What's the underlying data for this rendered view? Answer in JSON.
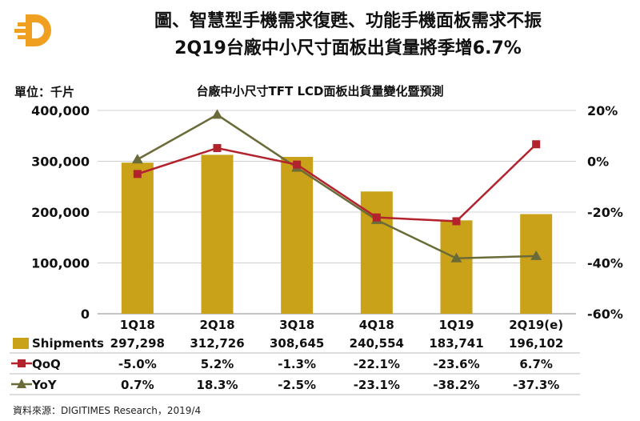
{
  "header": {
    "title_line1": "圖、智慧型手機需求復甦、功能手機面板需求不振",
    "title_line2": "2Q19台廠中小尺寸面板出貨量將季增6.7%"
  },
  "source": "資料來源：DIGITIMES Research，2019/4",
  "colors": {
    "bar": "#c9a21a",
    "qoq": "#b3232e",
    "yoy": "#6b6b3a",
    "logo": "#f0a020"
  },
  "chart_data": {
    "type": "bar",
    "title": "台廠中小尺寸TFT LCD面板出貨量變化暨預測",
    "unit_label": "單位：千片",
    "categories": [
      "1Q18",
      "2Q18",
      "3Q18",
      "4Q18",
      "1Q19",
      "2Q19(e)"
    ],
    "ylim": [
      0,
      400000
    ],
    "yticks": [
      "0",
      "100,000",
      "200,000",
      "300,000",
      "400,000"
    ],
    "y2lim": [
      -60,
      20
    ],
    "y2ticks": [
      "-60%",
      "-40%",
      "-20%",
      "0%",
      "20%"
    ],
    "grid": true,
    "series": [
      {
        "name": "Shipments",
        "kind": "bar",
        "axis": "left",
        "values": [
          297298,
          312726,
          308645,
          240554,
          183741,
          196102
        ],
        "labels": [
          "297,298",
          "312,726",
          "308,645",
          "240,554",
          "183,741",
          "196,102"
        ]
      },
      {
        "name": "QoQ",
        "kind": "line",
        "marker": "square",
        "axis": "right",
        "values": [
          -5.0,
          5.2,
          -1.3,
          -22.1,
          -23.6,
          6.7
        ],
        "labels": [
          "-5.0%",
          "5.2%",
          "-1.3%",
          "-22.1%",
          "-23.6%",
          "6.7%"
        ]
      },
      {
        "name": "YoY",
        "kind": "line",
        "marker": "triangle",
        "axis": "right",
        "values": [
          0.7,
          18.3,
          -2.5,
          -23.1,
          -38.2,
          -37.3
        ],
        "labels": [
          "0.7%",
          "18.3%",
          "-2.5%",
          "-23.1%",
          "-38.2%",
          "-37.3%"
        ]
      }
    ]
  }
}
